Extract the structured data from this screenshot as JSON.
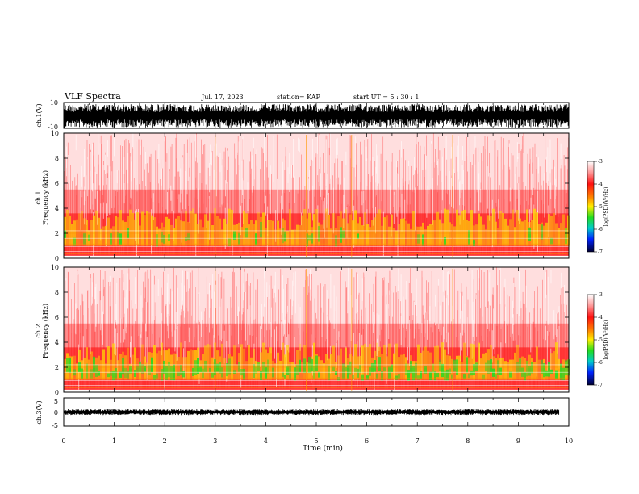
{
  "header": {
    "title": "VLF Spectra",
    "date": "Jul. 17, 2023",
    "station": "station= KAP",
    "start": "start UT = 5 : 30 : 1"
  },
  "chart_data": [
    {
      "type": "line",
      "title": "",
      "ylabel": "ch.1(V)",
      "ylim": [
        -10,
        10
      ],
      "y_ticks": [
        "10",
        "-10"
      ],
      "xlim": [
        0,
        10
      ],
      "description_of_trace": "dense waveform between -10 and 8 V"
    },
    {
      "type": "heatmap",
      "ylabel_line1": "ch.1",
      "ylabel_line2": "Frequency (kHz)",
      "ylim": [
        0,
        10
      ],
      "y_ticks": [
        "0",
        "2",
        "4",
        "6",
        "8",
        "10"
      ],
      "xlim": [
        0,
        10
      ],
      "colorbar": {
        "label": "log(PSD)(V²/Hz)",
        "range": [
          -7,
          -3
        ],
        "ticks": [
          "-3",
          "-4",
          "-5",
          "-6",
          "-7"
        ]
      }
    },
    {
      "type": "heatmap",
      "ylabel_line1": "ch.2",
      "ylabel_line2": "Frequency (kHz)",
      "ylim": [
        0,
        10
      ],
      "y_ticks": [
        "0",
        "2",
        "4",
        "6",
        "8",
        "10"
      ],
      "xlim": [
        0,
        10
      ],
      "colorbar": {
        "label": "log(PSD)(V²/Hz)",
        "range": [
          -7,
          -3
        ],
        "ticks": [
          "-3",
          "-4",
          "-5",
          "-6",
          "-7"
        ]
      }
    },
    {
      "type": "line",
      "ylabel": "ch.3(V)",
      "ylim": [
        -5,
        5
      ],
      "y_ticks": [
        "5",
        "0",
        "-5"
      ],
      "xlim": [
        0,
        10
      ],
      "x_ticks": [
        "0",
        "1",
        "2",
        "3",
        "4",
        "5",
        "6",
        "7",
        "8",
        "9",
        "10"
      ],
      "xlabel": "Time (min)"
    }
  ],
  "colors": {
    "high": "#ff2020",
    "mid": "#ffee00",
    "low": "#22dd22",
    "deep": "#0000ff",
    "floor": "#000033"
  }
}
